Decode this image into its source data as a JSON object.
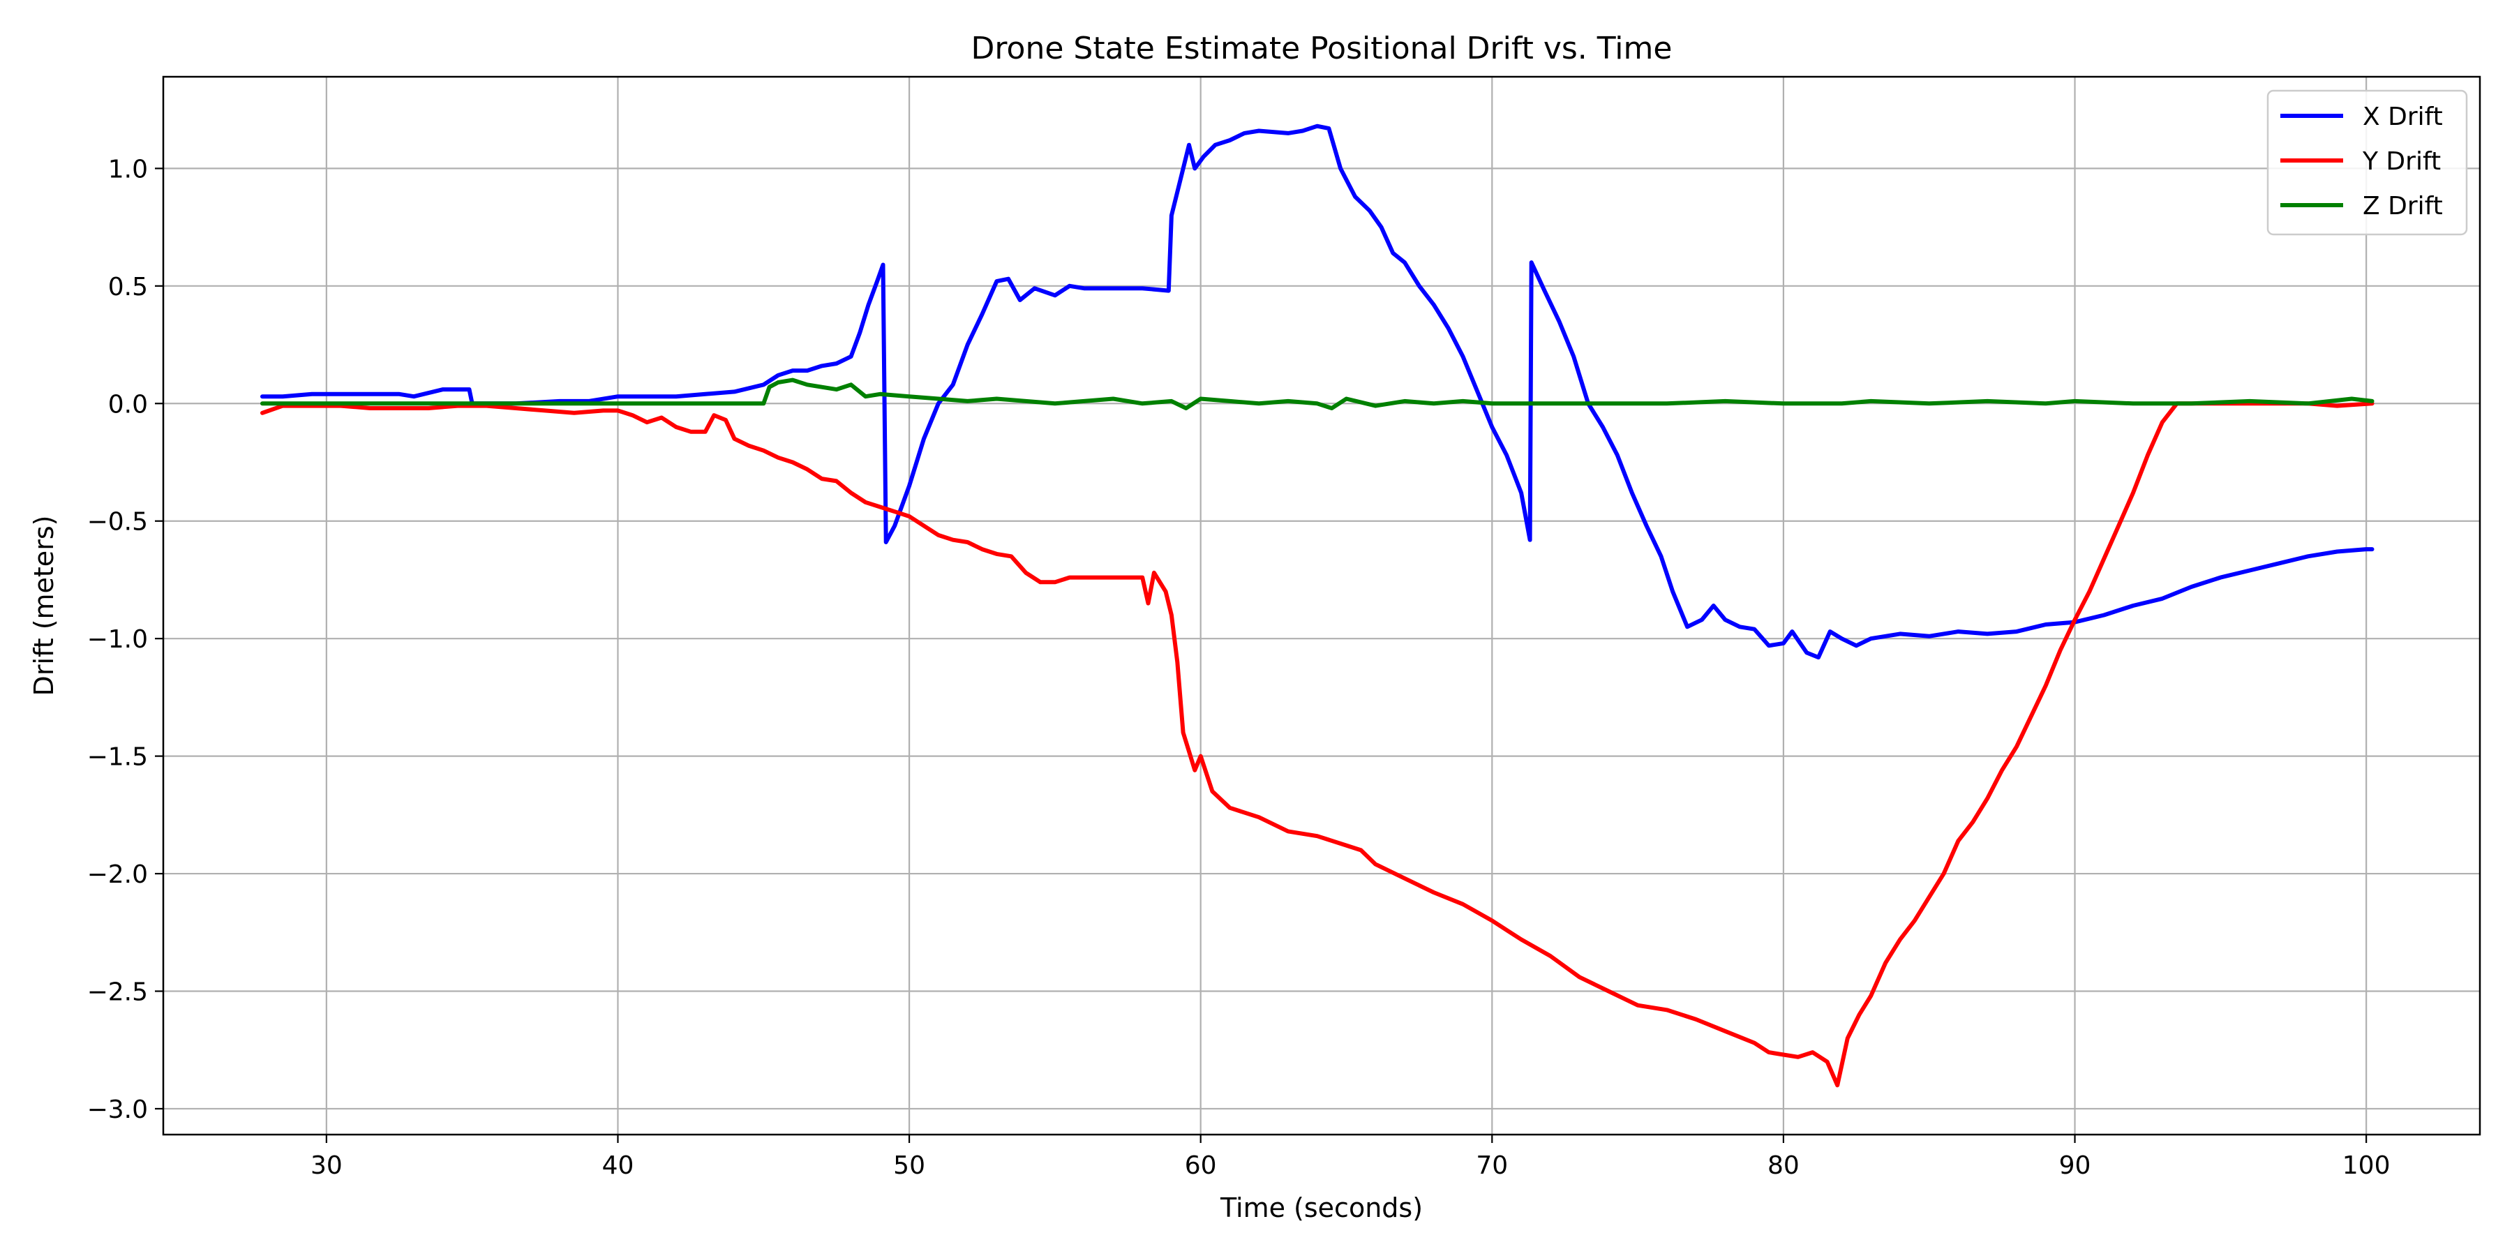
{
  "chart_data": {
    "type": "line",
    "title": "Drone State Estimate Positional Drift vs. Time",
    "xlabel": "Time (seconds)",
    "ylabel": "Drift (meters)",
    "xlim": [
      24.4,
      103.9
    ],
    "ylim": [
      -3.11,
      1.39
    ],
    "xticks": [
      30,
      40,
      50,
      60,
      70,
      80,
      90,
      100
    ],
    "xtick_labels": [
      "30",
      "40",
      "50",
      "60",
      "70",
      "80",
      "90",
      "100"
    ],
    "yticks": [
      -3.0,
      -2.5,
      -2.0,
      -1.5,
      -1.0,
      -0.5,
      0.0,
      0.5,
      1.0
    ],
    "ytick_labels": [
      "−3.0",
      "−2.5",
      "−2.0",
      "−1.5",
      "−1.0",
      "−0.5",
      "0.0",
      "0.5",
      "1.0"
    ],
    "grid": true,
    "legend_position": "top-right",
    "series": [
      {
        "name": "X Drift",
        "color": "#0000ff",
        "points": [
          [
            27.8,
            0.03
          ],
          [
            28.5,
            0.03
          ],
          [
            29.5,
            0.04
          ],
          [
            30.5,
            0.04
          ],
          [
            31.5,
            0.04
          ],
          [
            32.5,
            0.04
          ],
          [
            33.0,
            0.03
          ],
          [
            34.0,
            0.06
          ],
          [
            34.9,
            0.06
          ],
          [
            35.0,
            0.0
          ],
          [
            36.5,
            0.0
          ],
          [
            38.0,
            0.01
          ],
          [
            39.0,
            0.01
          ],
          [
            40.0,
            0.03
          ],
          [
            41.0,
            0.03
          ],
          [
            42.0,
            0.03
          ],
          [
            43.0,
            0.04
          ],
          [
            44.0,
            0.05
          ],
          [
            45.0,
            0.08
          ],
          [
            45.5,
            0.12
          ],
          [
            46.0,
            0.14
          ],
          [
            46.5,
            0.14
          ],
          [
            47.0,
            0.16
          ],
          [
            47.5,
            0.17
          ],
          [
            48.0,
            0.2
          ],
          [
            48.3,
            0.3
          ],
          [
            48.6,
            0.42
          ],
          [
            48.9,
            0.52
          ],
          [
            49.1,
            0.59
          ],
          [
            49.2,
            -0.59
          ],
          [
            49.5,
            -0.52
          ],
          [
            50.0,
            -0.35
          ],
          [
            50.5,
            -0.15
          ],
          [
            51.0,
            0.0
          ],
          [
            51.5,
            0.08
          ],
          [
            52.0,
            0.25
          ],
          [
            52.5,
            0.38
          ],
          [
            53.0,
            0.52
          ],
          [
            53.4,
            0.53
          ],
          [
            53.8,
            0.44
          ],
          [
            54.3,
            0.49
          ],
          [
            55.0,
            0.46
          ],
          [
            55.5,
            0.5
          ],
          [
            56.0,
            0.49
          ],
          [
            57.0,
            0.49
          ],
          [
            58.0,
            0.49
          ],
          [
            58.9,
            0.48
          ],
          [
            59.0,
            0.8
          ],
          [
            59.3,
            0.95
          ],
          [
            59.6,
            1.1
          ],
          [
            59.8,
            1.0
          ],
          [
            60.1,
            1.05
          ],
          [
            60.5,
            1.1
          ],
          [
            61.0,
            1.12
          ],
          [
            61.5,
            1.15
          ],
          [
            62.0,
            1.16
          ],
          [
            63.0,
            1.15
          ],
          [
            63.5,
            1.16
          ],
          [
            64.0,
            1.18
          ],
          [
            64.4,
            1.17
          ],
          [
            64.8,
            1.0
          ],
          [
            65.3,
            0.88
          ],
          [
            65.8,
            0.82
          ],
          [
            66.2,
            0.75
          ],
          [
            66.6,
            0.64
          ],
          [
            67.0,
            0.6
          ],
          [
            67.5,
            0.5
          ],
          [
            68.0,
            0.42
          ],
          [
            68.5,
            0.32
          ],
          [
            69.0,
            0.2
          ],
          [
            69.5,
            0.05
          ],
          [
            70.0,
            -0.1
          ],
          [
            70.5,
            -0.22
          ],
          [
            71.0,
            -0.38
          ],
          [
            71.3,
            -0.58
          ],
          [
            71.35,
            0.6
          ],
          [
            71.8,
            0.48
          ],
          [
            72.3,
            0.35
          ],
          [
            72.8,
            0.2
          ],
          [
            73.3,
            0.0
          ],
          [
            73.8,
            -0.1
          ],
          [
            74.3,
            -0.22
          ],
          [
            74.8,
            -0.38
          ],
          [
            75.3,
            -0.52
          ],
          [
            75.8,
            -0.65
          ],
          [
            76.2,
            -0.8
          ],
          [
            76.7,
            -0.95
          ],
          [
            77.2,
            -0.92
          ],
          [
            77.6,
            -0.86
          ],
          [
            78.0,
            -0.92
          ],
          [
            78.5,
            -0.95
          ],
          [
            79.0,
            -0.96
          ],
          [
            79.5,
            -1.03
          ],
          [
            80.0,
            -1.02
          ],
          [
            80.3,
            -0.97
          ],
          [
            80.8,
            -1.06
          ],
          [
            81.2,
            -1.08
          ],
          [
            81.6,
            -0.97
          ],
          [
            82.0,
            -1.0
          ],
          [
            82.5,
            -1.03
          ],
          [
            83.0,
            -1.0
          ],
          [
            84.0,
            -0.98
          ],
          [
            85.0,
            -0.99
          ],
          [
            86.0,
            -0.97
          ],
          [
            87.0,
            -0.98
          ],
          [
            88.0,
            -0.97
          ],
          [
            89.0,
            -0.94
          ],
          [
            90.0,
            -0.93
          ],
          [
            91.0,
            -0.9
          ],
          [
            92.0,
            -0.86
          ],
          [
            93.0,
            -0.83
          ],
          [
            94.0,
            -0.78
          ],
          [
            95.0,
            -0.74
          ],
          [
            96.0,
            -0.71
          ],
          [
            97.0,
            -0.68
          ],
          [
            98.0,
            -0.65
          ],
          [
            99.0,
            -0.63
          ],
          [
            100.0,
            -0.62
          ],
          [
            100.2,
            -0.62
          ]
        ]
      },
      {
        "name": "Y Drift",
        "color": "#ff0000",
        "points": [
          [
            27.8,
            -0.04
          ],
          [
            28.5,
            -0.01
          ],
          [
            29.5,
            -0.01
          ],
          [
            30.5,
            -0.01
          ],
          [
            31.5,
            -0.02
          ],
          [
            32.5,
            -0.02
          ],
          [
            33.5,
            -0.02
          ],
          [
            34.5,
            -0.01
          ],
          [
            35.5,
            -0.01
          ],
          [
            36.5,
            -0.02
          ],
          [
            37.5,
            -0.03
          ],
          [
            38.5,
            -0.04
          ],
          [
            39.5,
            -0.03
          ],
          [
            40.0,
            -0.03
          ],
          [
            40.5,
            -0.05
          ],
          [
            41.0,
            -0.08
          ],
          [
            41.5,
            -0.06
          ],
          [
            42.0,
            -0.1
          ],
          [
            42.5,
            -0.12
          ],
          [
            43.0,
            -0.12
          ],
          [
            43.3,
            -0.05
          ],
          [
            43.7,
            -0.07
          ],
          [
            44.0,
            -0.15
          ],
          [
            44.5,
            -0.18
          ],
          [
            45.0,
            -0.2
          ],
          [
            45.5,
            -0.23
          ],
          [
            46.0,
            -0.25
          ],
          [
            46.5,
            -0.28
          ],
          [
            47.0,
            -0.32
          ],
          [
            47.5,
            -0.33
          ],
          [
            48.0,
            -0.38
          ],
          [
            48.5,
            -0.42
          ],
          [
            49.0,
            -0.44
          ],
          [
            49.5,
            -0.46
          ],
          [
            50.0,
            -0.48
          ],
          [
            50.5,
            -0.52
          ],
          [
            51.0,
            -0.56
          ],
          [
            51.5,
            -0.58
          ],
          [
            52.0,
            -0.59
          ],
          [
            52.5,
            -0.62
          ],
          [
            53.0,
            -0.64
          ],
          [
            53.5,
            -0.65
          ],
          [
            54.0,
            -0.72
          ],
          [
            54.5,
            -0.76
          ],
          [
            55.0,
            -0.76
          ],
          [
            55.5,
            -0.74
          ],
          [
            56.0,
            -0.74
          ],
          [
            57.0,
            -0.74
          ],
          [
            58.0,
            -0.74
          ],
          [
            58.2,
            -0.85
          ],
          [
            58.4,
            -0.72
          ],
          [
            58.8,
            -0.8
          ],
          [
            59.0,
            -0.9
          ],
          [
            59.2,
            -1.1
          ],
          [
            59.4,
            -1.4
          ],
          [
            59.6,
            -1.48
          ],
          [
            59.8,
            -1.56
          ],
          [
            60.0,
            -1.5
          ],
          [
            60.4,
            -1.65
          ],
          [
            61.0,
            -1.72
          ],
          [
            62.0,
            -1.76
          ],
          [
            63.0,
            -1.82
          ],
          [
            64.0,
            -1.84
          ],
          [
            65.0,
            -1.88
          ],
          [
            65.5,
            -1.9
          ],
          [
            66.0,
            -1.96
          ],
          [
            67.0,
            -2.02
          ],
          [
            68.0,
            -2.08
          ],
          [
            69.0,
            -2.13
          ],
          [
            70.0,
            -2.2
          ],
          [
            71.0,
            -2.28
          ],
          [
            72.0,
            -2.35
          ],
          [
            73.0,
            -2.44
          ],
          [
            74.0,
            -2.5
          ],
          [
            75.0,
            -2.56
          ],
          [
            76.0,
            -2.58
          ],
          [
            77.0,
            -2.62
          ],
          [
            78.0,
            -2.67
          ],
          [
            79.0,
            -2.72
          ],
          [
            79.5,
            -2.76
          ],
          [
            80.0,
            -2.77
          ],
          [
            80.5,
            -2.78
          ],
          [
            81.0,
            -2.76
          ],
          [
            81.5,
            -2.8
          ],
          [
            81.85,
            -2.9
          ],
          [
            82.2,
            -2.7
          ],
          [
            82.6,
            -2.6
          ],
          [
            83.0,
            -2.52
          ],
          [
            83.5,
            -2.38
          ],
          [
            84.0,
            -2.28
          ],
          [
            84.5,
            -2.2
          ],
          [
            85.0,
            -2.1
          ],
          [
            85.5,
            -2.0
          ],
          [
            86.0,
            -1.86
          ],
          [
            86.5,
            -1.78
          ],
          [
            87.0,
            -1.68
          ],
          [
            87.5,
            -1.56
          ],
          [
            88.0,
            -1.46
          ],
          [
            88.5,
            -1.33
          ],
          [
            89.0,
            -1.2
          ],
          [
            89.5,
            -1.05
          ],
          [
            90.0,
            -0.92
          ],
          [
            90.5,
            -0.8
          ],
          [
            91.0,
            -0.66
          ],
          [
            91.5,
            -0.52
          ],
          [
            92.0,
            -0.38
          ],
          [
            92.5,
            -0.22
          ],
          [
            93.0,
            -0.08
          ],
          [
            93.5,
            0.0
          ],
          [
            94.0,
            0.0
          ],
          [
            95.0,
            0.0
          ],
          [
            96.0,
            0.0
          ],
          [
            97.0,
            0.0
          ],
          [
            98.0,
            0.0
          ],
          [
            99.0,
            -0.01
          ],
          [
            100.2,
            0.0
          ]
        ]
      },
      {
        "name": "Z Drift",
        "color": "#008000",
        "points": [
          [
            27.8,
            0.0
          ],
          [
            29.0,
            0.0
          ],
          [
            31.0,
            0.0
          ],
          [
            33.0,
            0.0
          ],
          [
            35.0,
            0.0
          ],
          [
            37.0,
            0.0
          ],
          [
            39.0,
            0.0
          ],
          [
            41.0,
            0.0
          ],
          [
            43.0,
            0.0
          ],
          [
            44.0,
            0.0
          ],
          [
            45.0,
            0.0
          ],
          [
            45.2,
            0.07
          ],
          [
            45.5,
            0.09
          ],
          [
            46.0,
            0.1
          ],
          [
            46.5,
            0.08
          ],
          [
            47.0,
            0.07
          ],
          [
            47.5,
            0.06
          ],
          [
            48.0,
            0.08
          ],
          [
            48.5,
            0.03
          ],
          [
            49.0,
            0.04
          ],
          [
            50.0,
            0.03
          ],
          [
            51.0,
            0.02
          ],
          [
            52.0,
            0.01
          ],
          [
            53.0,
            0.02
          ],
          [
            54.0,
            0.01
          ],
          [
            55.0,
            0.0
          ],
          [
            56.0,
            0.01
          ],
          [
            57.0,
            0.02
          ],
          [
            58.0,
            0.0
          ],
          [
            59.0,
            0.01
          ],
          [
            59.5,
            -0.02
          ],
          [
            60.0,
            0.02
          ],
          [
            61.0,
            0.01
          ],
          [
            62.0,
            0.0
          ],
          [
            63.0,
            0.01
          ],
          [
            64.0,
            0.0
          ],
          [
            64.5,
            -0.02
          ],
          [
            65.0,
            0.02
          ],
          [
            66.0,
            -0.01
          ],
          [
            67.0,
            0.01
          ],
          [
            68.0,
            0.0
          ],
          [
            69.0,
            0.01
          ],
          [
            70.0,
            0.0
          ],
          [
            72.0,
            0.0
          ],
          [
            74.0,
            0.0
          ],
          [
            76.0,
            0.0
          ],
          [
            78.0,
            0.01
          ],
          [
            80.0,
            0.0
          ],
          [
            82.0,
            0.0
          ],
          [
            83.0,
            0.01
          ],
          [
            85.0,
            0.0
          ],
          [
            87.0,
            0.01
          ],
          [
            89.0,
            0.0
          ],
          [
            90.0,
            0.01
          ],
          [
            92.0,
            0.0
          ],
          [
            94.0,
            0.0
          ],
          [
            96.0,
            0.01
          ],
          [
            98.0,
            0.0
          ],
          [
            99.5,
            0.02
          ],
          [
            100.2,
            0.01
          ]
        ]
      }
    ]
  }
}
